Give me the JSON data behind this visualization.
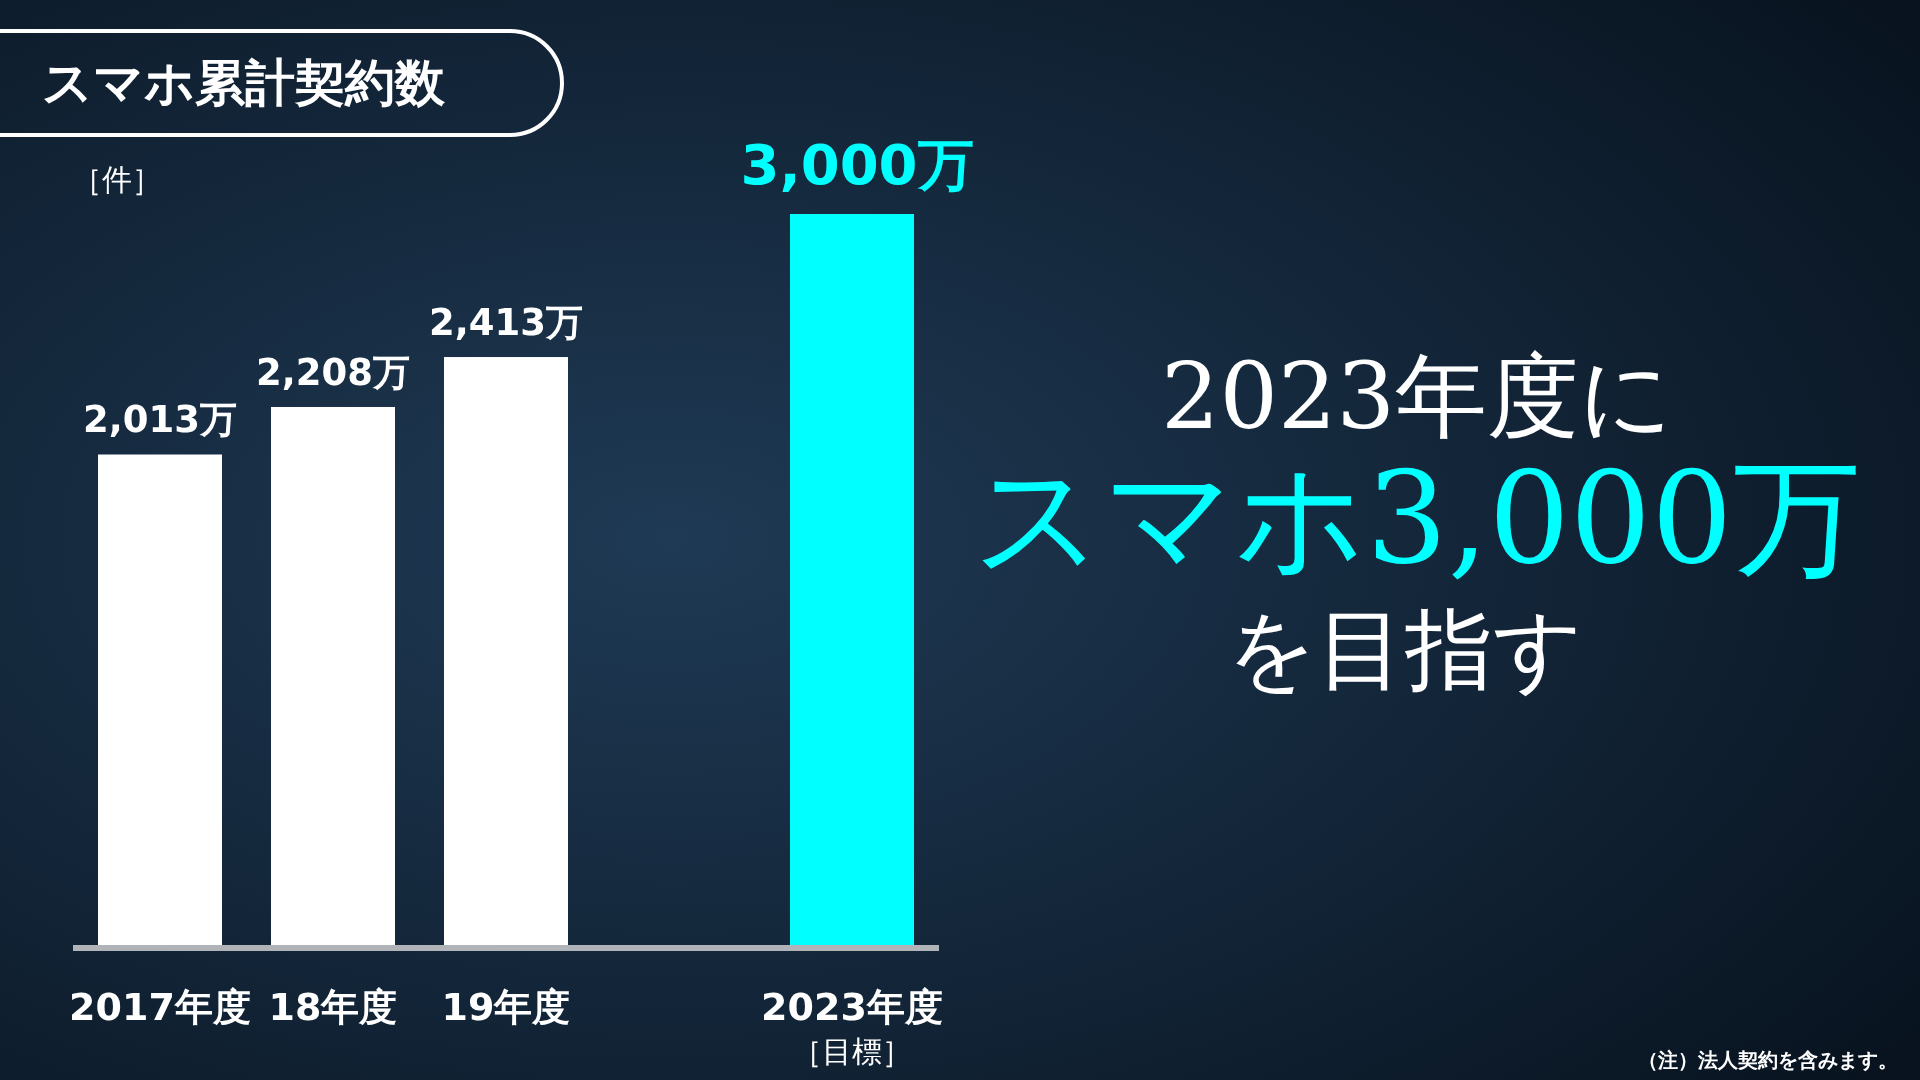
{
  "chart_data": {
    "type": "bar",
    "title": "スマホ累計契約数",
    "ylabel": "［件］",
    "categories": [
      "2017年度",
      "18年度",
      "19年度",
      null,
      "2023年度［目標］"
    ],
    "values": [
      2013,
      2208,
      2413,
      null,
      3000
    ],
    "colors": [
      "#ffffff",
      "#ffffff",
      "#ffffff",
      null,
      "#00ffff"
    ],
    "value_labels": [
      "2,013万",
      "2,208万",
      "2,413万",
      null,
      "3,000万"
    ],
    "annotations": [
      "2023年度に",
      "スマホ3,000万",
      "を目指す",
      "（注）法人契約を含みます。"
    ]
  }
}
